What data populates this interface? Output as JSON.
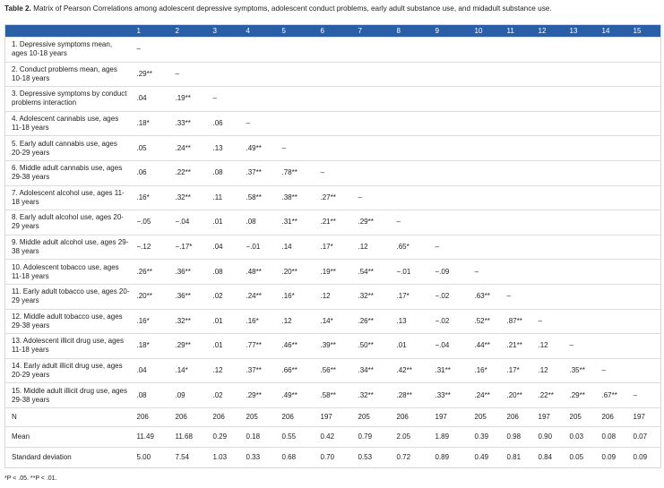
{
  "caption": {
    "label": "Table 2.",
    "text": "Matrix of Pearson Correlations among adolescent depressive symptoms, adolescent conduct problems, early adult substance use, and midadult substance use."
  },
  "table": {
    "header": [
      "1",
      "2",
      "3",
      "4",
      "5",
      "6",
      "7",
      "8",
      "9",
      "10",
      "11",
      "12",
      "13",
      "14",
      "15"
    ],
    "rows": [
      {
        "label": "1. Depressive symptoms mean, ages 10-18 years",
        "cells": [
          "–"
        ]
      },
      {
        "label": "2. Conduct problems mean, ages 10-18 years",
        "cells": [
          ".29**",
          "–"
        ]
      },
      {
        "label": "3. Depressive symptoms by conduct problems interaction",
        "cells": [
          ".04",
          ".19**",
          "–"
        ]
      },
      {
        "label": "4. Adolescent cannabis use, ages 11-18 years",
        "cells": [
          ".18*",
          ".33**",
          ".06",
          "–"
        ]
      },
      {
        "label": "5. Early adult cannabis use, ages 20-29 years",
        "cells": [
          ".05",
          ".24**",
          ".13",
          ".49**",
          "–"
        ]
      },
      {
        "label": "6. Middle adult cannabis use, ages 29-38 years",
        "cells": [
          ".06",
          ".22**",
          ".08",
          ".37**",
          ".78**",
          "–"
        ]
      },
      {
        "label": "7. Adolescent alcohol use, ages 11-18 years",
        "cells": [
          ".16*",
          ".32**",
          ".11",
          ".58**",
          ".38**",
          ".27**",
          "–"
        ]
      },
      {
        "label": "8. Early adult alcohol use, ages 20-29 years",
        "cells": [
          "−.05",
          "−.04",
          ".01",
          ".08",
          ".31**",
          ".21**",
          ".29**",
          "–"
        ]
      },
      {
        "label": "9. Middle adult alcohol use, ages 29-38 years",
        "cells": [
          "−.12",
          "−.17*",
          ".04",
          "−.01",
          ".14",
          ".17*",
          ".12",
          ".65*",
          "–"
        ]
      },
      {
        "label": "10. Adolescent tobacco use, ages 11-18 years",
        "cells": [
          ".26**",
          ".36**",
          ".08",
          ".48**",
          ".20**",
          ".19**",
          ".54**",
          "−.01",
          "−.09",
          "–"
        ]
      },
      {
        "label": "11. Early adult tobacco use, ages 20-29 years",
        "cells": [
          ".20**",
          ".36**",
          ".02",
          ".24**",
          ".16*",
          ".12",
          ".32**",
          ".17*",
          "−.02",
          ".63**",
          "–"
        ]
      },
      {
        "label": "12. Middle adult tobacco use, ages 29-38 years",
        "cells": [
          ".16*",
          ".32**",
          ".01",
          ".16*",
          ".12",
          ".14*",
          ".26**",
          ".13",
          "−.02",
          ".52**",
          ".87**",
          "–"
        ]
      },
      {
        "label": "13. Adolescent illicit drug use, ages 11-18 years",
        "cells": [
          ".18*",
          ".29**",
          ".01",
          ".77**",
          ".46**",
          ".39**",
          ".50**",
          ".01",
          "−.04",
          ".44**",
          ".21**",
          ".12",
          "–"
        ]
      },
      {
        "label": "14. Early adult illicit drug use, ages 20-29 years",
        "cells": [
          ".04",
          ".14*",
          ".12",
          ".37**",
          ".66**",
          ".56**",
          ".34**",
          ".42**",
          ".31**",
          ".16*",
          ".17*",
          ".12",
          ".35**",
          "–"
        ]
      },
      {
        "label": "15. Middle adult illicit drug use, ages 29-38 years",
        "cells": [
          ".08",
          ".09",
          ".02",
          ".29**",
          ".49**",
          ".58**",
          ".32**",
          ".28**",
          ".33**",
          ".24**",
          ".20**",
          ".22**",
          ".29**",
          ".67**",
          "–"
        ]
      },
      {
        "label": "N",
        "cells": [
          "206",
          "206",
          "206",
          "205",
          "206",
          "197",
          "205",
          "206",
          "197",
          "205",
          "206",
          "197",
          "205",
          "206",
          "197"
        ]
      },
      {
        "label": "Mean",
        "cells": [
          "11.49",
          "11.68",
          "0.29",
          "0.18",
          "0.55",
          "0.42",
          "0.79",
          "2.05",
          "1.89",
          "0.39",
          "0.98",
          "0.90",
          "0.03",
          "0.08",
          "0.07"
        ]
      },
      {
        "label": "Standard deviation",
        "cells": [
          "5.00",
          "7.54",
          "1.03",
          "0.33",
          "0.68",
          "0.70",
          "0.53",
          "0.72",
          "0.89",
          "0.49",
          "0.81",
          "0.84",
          "0.05",
          "0.09",
          "0.09"
        ]
      }
    ]
  },
  "footnote": "*P < .05. **P < .01."
}
